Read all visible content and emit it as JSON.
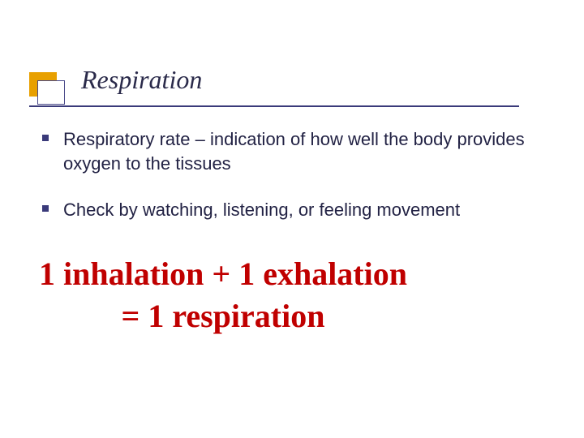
{
  "title": "Respiration",
  "bullets": [
    "Respiratory rate – indication of how well the body provides oxygen to the tissues",
    "Check by watching, listening, or feeling movement"
  ],
  "equation": {
    "line1": "1 inhalation + 1 exhalation",
    "line2": "=  1 respiration"
  },
  "colors": {
    "title_accent": "#e8a000",
    "title_border": "#4a4a8a",
    "title_text": "#2a2a4a",
    "underline": "#3a3a7a",
    "bullet_marker": "#3a3a7a",
    "bullet_text": "#222244",
    "equation_text": "#c00000",
    "background": "#ffffff"
  },
  "fonts": {
    "title_family": "Georgia, Times New Roman, serif",
    "title_style": "italic",
    "title_size": 32,
    "body_family": "Verdana, Geneva, sans-serif",
    "body_size": 22,
    "equation_family": "Times New Roman, Times, serif",
    "equation_size": 40,
    "equation_weight": "bold"
  }
}
